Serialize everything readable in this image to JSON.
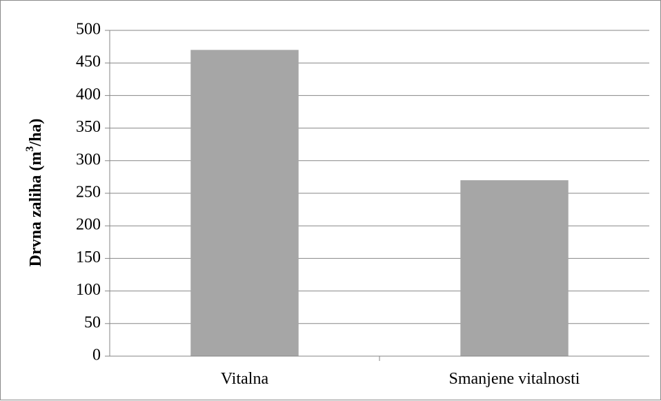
{
  "chart_data": {
    "type": "bar",
    "categories": [
      "Vitalna",
      "Smanjene vitalnosti"
    ],
    "values": [
      470,
      270
    ],
    "title": "",
    "xlabel": "",
    "ylabel_parts": {
      "before": "Drvna zaliha (m",
      "superscript": "3",
      "after": "/ha)"
    },
    "ylim": [
      0,
      500
    ],
    "yticks": [
      "0",
      "50",
      "100",
      "150",
      "200",
      "250",
      "300",
      "350",
      "400",
      "450",
      "500"
    ],
    "grid": true,
    "legend": "none",
    "colors": {
      "bar": "#a6a6a6",
      "grid": "#868686",
      "axis": "#868686"
    }
  }
}
